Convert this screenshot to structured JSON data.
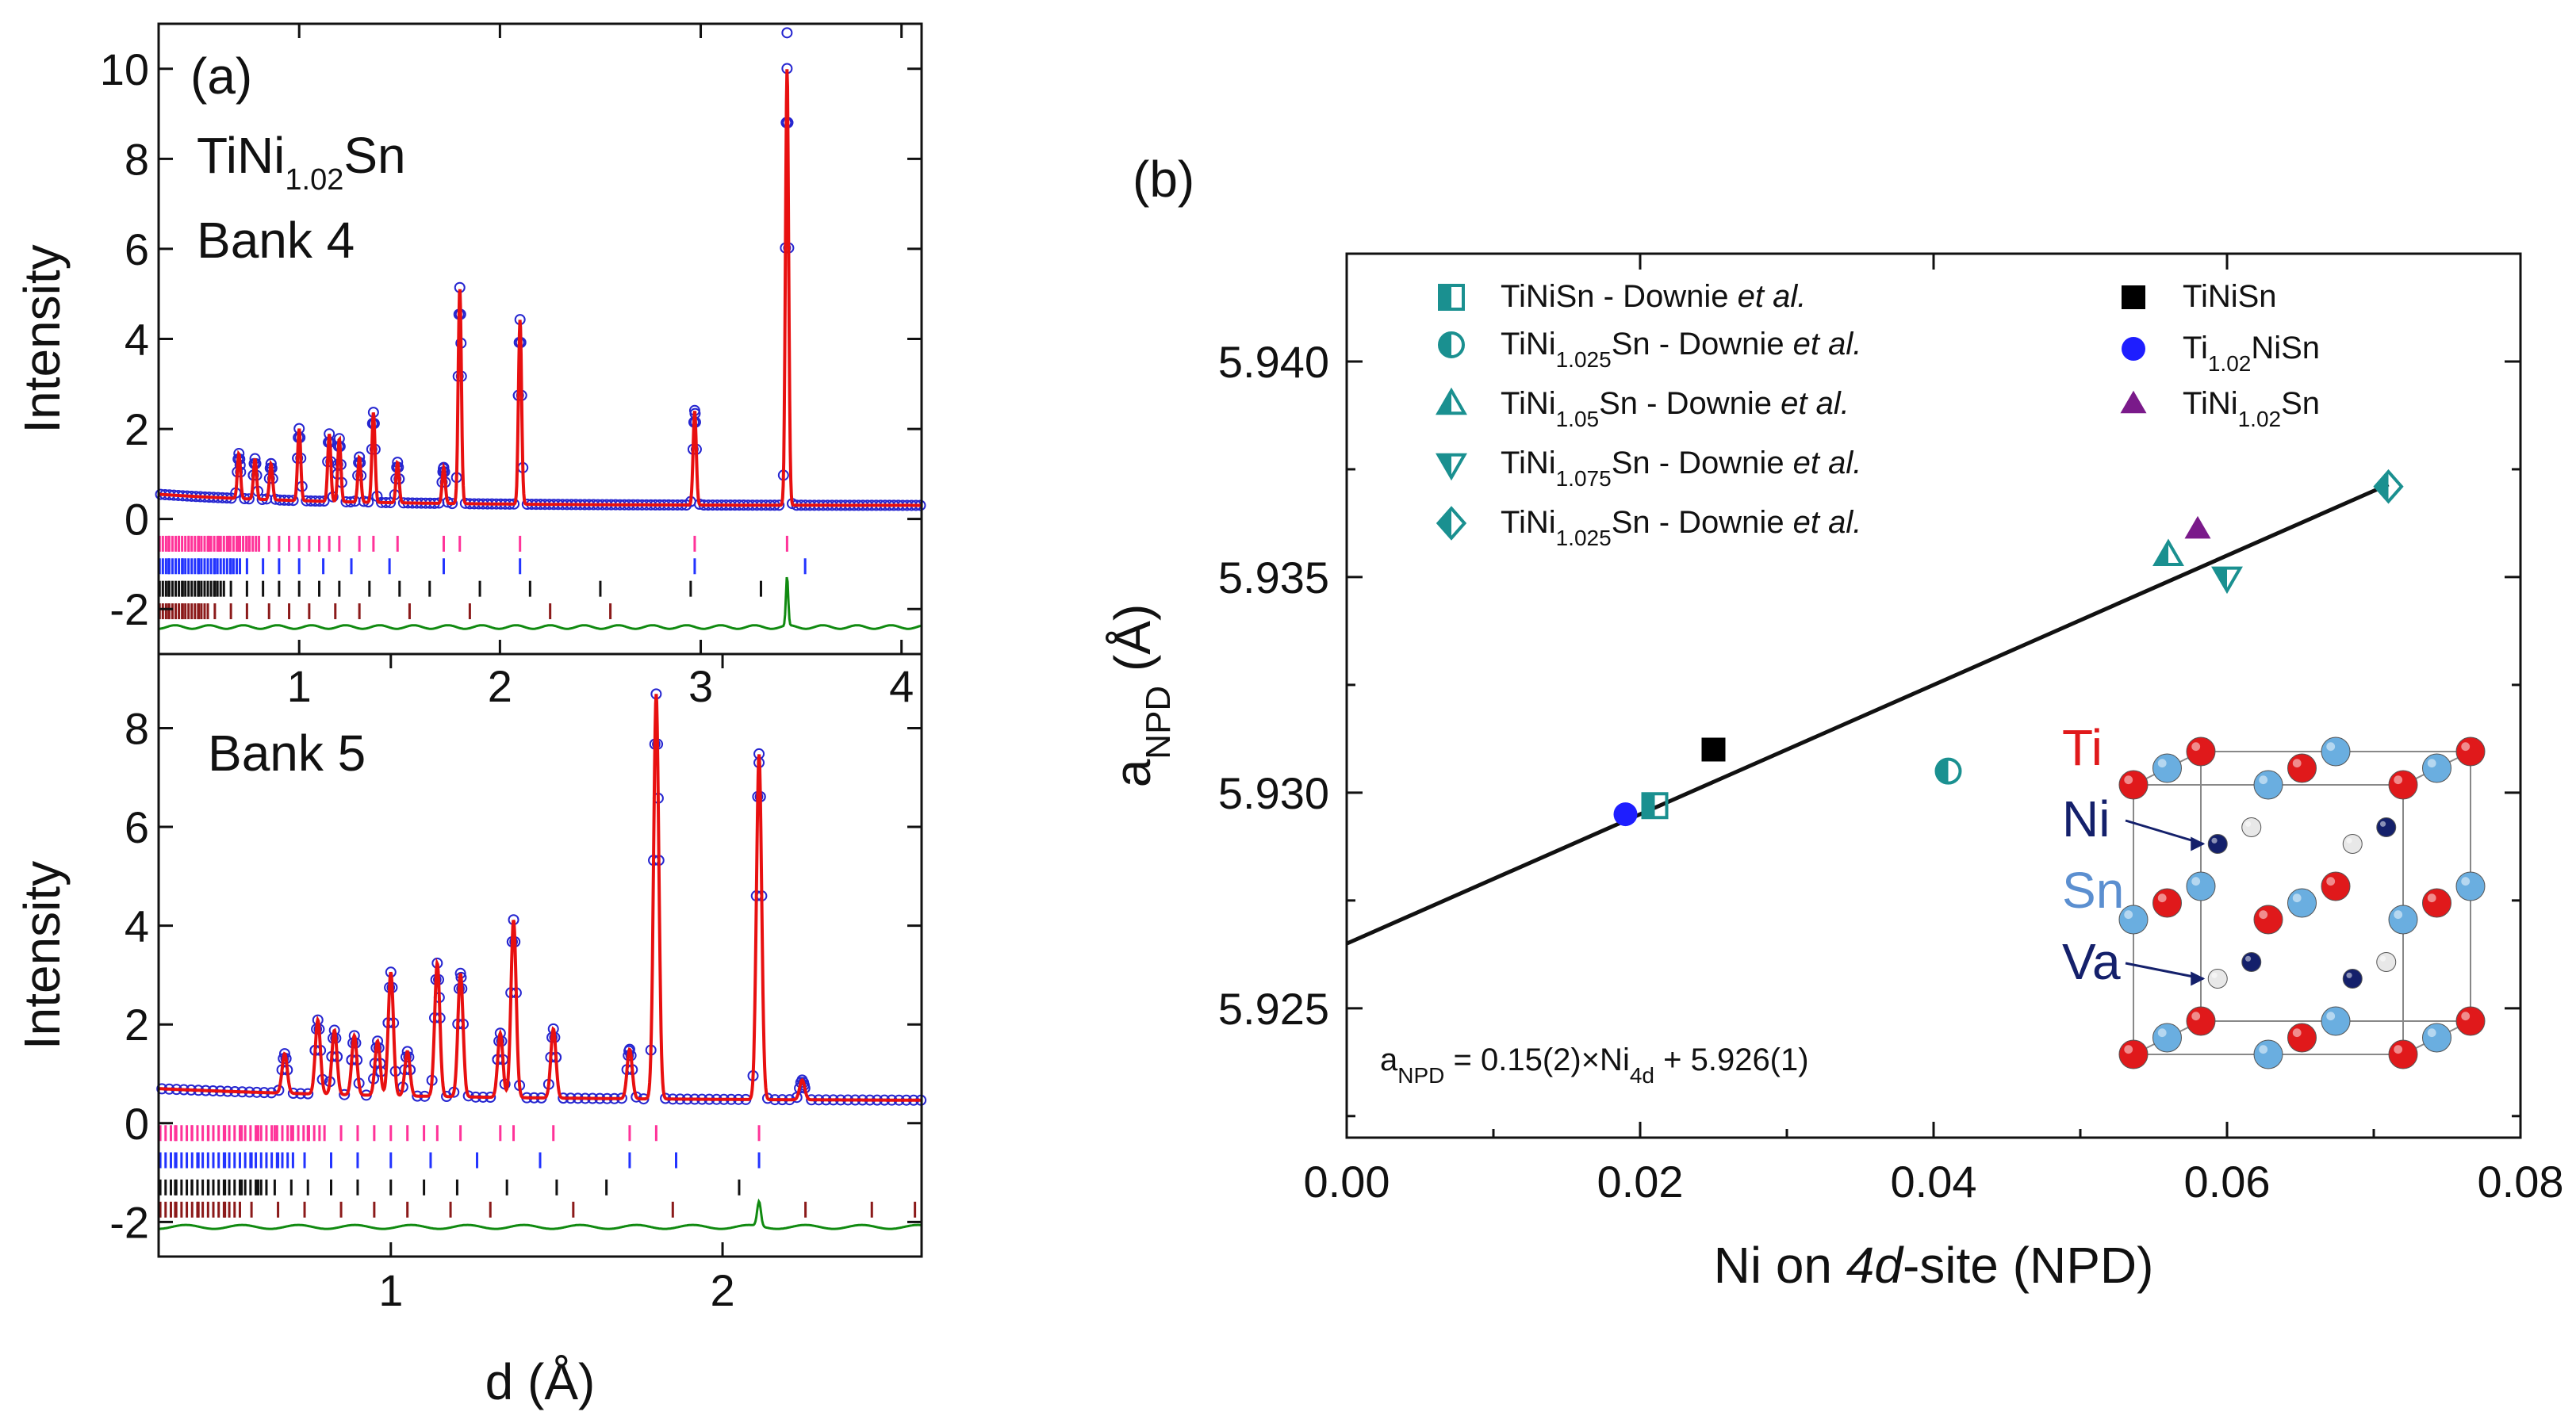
{
  "chart_data": [
    {
      "id": "a-bank4",
      "type": "line",
      "panel_label": "(a)",
      "compound": "TiNi",
      "compound_sub": "1.02",
      "compound_suffix": "Sn",
      "bank_label": "Bank 4",
      "ylabel": "Intensity",
      "xlim": [
        0.3,
        4.1
      ],
      "ylim": [
        -3.0,
        11.0
      ],
      "xticks": [
        "1",
        "2",
        "3",
        "4"
      ],
      "yticks": [
        "-2",
        "0",
        "2",
        "4",
        "6",
        "8",
        "10"
      ],
      "background": 0.3,
      "peaks": [
        {
          "d": 0.7,
          "h": 1.0
        },
        {
          "d": 0.78,
          "h": 0.9
        },
        {
          "d": 0.86,
          "h": 0.8
        },
        {
          "d": 1.0,
          "h": 1.6
        },
        {
          "d": 1.15,
          "h": 1.5
        },
        {
          "d": 1.2,
          "h": 1.4
        },
        {
          "d": 1.3,
          "h": 1.0
        },
        {
          "d": 1.37,
          "h": 2.0
        },
        {
          "d": 1.49,
          "h": 0.9
        },
        {
          "d": 1.72,
          "h": 0.8
        },
        {
          "d": 1.8,
          "h": 4.8
        },
        {
          "d": 2.1,
          "h": 4.1
        },
        {
          "d": 2.97,
          "h": 2.1
        },
        {
          "d": 3.43,
          "h": 9.7
        }
      ],
      "obs_max_point": {
        "d": 3.43,
        "y": 10.8
      },
      "ticks_rows": [
        {
          "color": "#ff3399",
          "y": -0.55,
          "d": [
            0.35,
            0.4,
            0.45,
            0.5,
            0.55,
            0.6,
            0.65,
            0.7,
            0.75,
            0.8,
            0.85,
            0.9,
            0.95,
            1.0,
            1.05,
            1.1,
            1.15,
            1.2,
            1.3,
            1.37,
            1.49,
            1.72,
            1.8,
            2.1,
            2.97,
            3.43
          ]
        },
        {
          "color": "#2233ff",
          "y": -1.05,
          "d": [
            0.35,
            0.42,
            0.5,
            0.58,
            0.66,
            0.74,
            0.82,
            0.9,
            1.0,
            1.12,
            1.26,
            1.45,
            1.72,
            2.1,
            2.97,
            3.52
          ]
        },
        {
          "color": "#111111",
          "y": -1.55,
          "d": [
            0.35,
            0.42,
            0.5,
            0.58,
            0.66,
            0.74,
            0.82,
            0.9,
            1.0,
            1.1,
            1.2,
            1.35,
            1.5,
            1.65,
            1.9,
            2.15,
            2.5,
            2.95,
            3.3
          ]
        },
        {
          "color": "#8b1a1a",
          "y": -2.05,
          "d": [
            0.35,
            0.42,
            0.5,
            0.58,
            0.66,
            0.74,
            0.85,
            0.95,
            1.05,
            1.18,
            1.3,
            1.55,
            1.85,
            2.25,
            2.55
          ]
        }
      ],
      "diff_offset": -2.4,
      "diff_spike": {
        "d": 3.43,
        "h": 1.1
      }
    },
    {
      "id": "a-bank5",
      "type": "line",
      "bank_label": "Bank 5",
      "ylabel": "Intensity",
      "xlabel": "d (Å)",
      "xlim": [
        0.3,
        2.6
      ],
      "ylim": [
        -2.7,
        9.5
      ],
      "xticks": [
        "1",
        "2"
      ],
      "yticks": [
        "-2",
        "0",
        "2",
        "4",
        "6",
        "8"
      ],
      "background": 0.45,
      "peaks": [
        {
          "d": 0.68,
          "h": 0.8
        },
        {
          "d": 0.78,
          "h": 1.5
        },
        {
          "d": 0.83,
          "h": 1.3
        },
        {
          "d": 0.89,
          "h": 1.2
        },
        {
          "d": 0.96,
          "h": 1.1
        },
        {
          "d": 1.0,
          "h": 2.5
        },
        {
          "d": 1.05,
          "h": 0.9
        },
        {
          "d": 1.14,
          "h": 2.7
        },
        {
          "d": 1.21,
          "h": 2.5
        },
        {
          "d": 1.33,
          "h": 1.3
        },
        {
          "d": 1.37,
          "h": 3.6
        },
        {
          "d": 1.49,
          "h": 1.4
        },
        {
          "d": 1.72,
          "h": 1.0
        },
        {
          "d": 1.8,
          "h": 8.2
        },
        {
          "d": 2.11,
          "h": 7.0
        },
        {
          "d": 2.24,
          "h": 0.4
        }
      ],
      "obs_max_point": {
        "d": 2.11,
        "y": 7.3
      },
      "ticks_rows": [
        {
          "color": "#ff3399",
          "y": -0.2,
          "d": [
            0.35,
            0.4,
            0.45,
            0.5,
            0.55,
            0.6,
            0.65,
            0.7,
            0.75,
            0.8,
            0.85,
            0.9,
            0.95,
            1.0,
            1.05,
            1.1,
            1.14,
            1.21,
            1.33,
            1.37,
            1.49,
            1.72,
            1.8,
            2.11
          ]
        },
        {
          "color": "#2233ff",
          "y": -0.75,
          "d": [
            0.35,
            0.42,
            0.5,
            0.58,
            0.66,
            0.74,
            0.82,
            0.9,
            1.0,
            1.12,
            1.26,
            1.45,
            1.72,
            1.86,
            2.11
          ]
        },
        {
          "color": "#111111",
          "y": -1.3,
          "d": [
            0.35,
            0.4,
            0.45,
            0.5,
            0.55,
            0.6,
            0.65,
            0.7,
            0.75,
            0.82,
            0.9,
            1.0,
            1.1,
            1.2,
            1.35,
            1.5,
            1.65,
            2.05
          ]
        },
        {
          "color": "#8b1a1a",
          "y": -1.75,
          "d": [
            0.35,
            0.42,
            0.5,
            0.58,
            0.66,
            0.74,
            0.85,
            0.95,
            1.05,
            1.18,
            1.3,
            1.55,
            1.85,
            2.25,
            2.45,
            2.58
          ]
        }
      ],
      "diff_offset": -2.1,
      "diff_spike": {
        "d": 2.11,
        "h": 0.5
      }
    },
    {
      "id": "b",
      "type": "scatter",
      "panel_label": "(b)",
      "xlabel_parts": [
        "Ni on ",
        "4d",
        "-site (NPD)"
      ],
      "ylabel_main": "a",
      "ylabel_sub": "NPD",
      "ylabel_unit": " (Å)",
      "xlim": [
        0.0,
        0.08
      ],
      "ylim": [
        5.922,
        5.9425
      ],
      "xticks": [
        "0.00",
        "0.02",
        "0.04",
        "0.06",
        "0.08"
      ],
      "yticks": [
        "5.925",
        "5.930",
        "5.935",
        "5.940"
      ],
      "points": [
        {
          "x": 0.021,
          "y": 5.9297,
          "marker": "square-half",
          "color": "#1a9090"
        },
        {
          "x": 0.041,
          "y": 5.9305,
          "marker": "circle-half",
          "color": "#1a9090"
        },
        {
          "x": 0.056,
          "y": 5.9355,
          "marker": "triangle-half",
          "color": "#1a9090"
        },
        {
          "x": 0.06,
          "y": 5.935,
          "marker": "triangle-down-half",
          "color": "#1a9090"
        },
        {
          "x": 0.071,
          "y": 5.9371,
          "marker": "diamond-half",
          "color": "#1a9090"
        },
        {
          "x": 0.025,
          "y": 5.931,
          "marker": "square",
          "color": "#000000"
        },
        {
          "x": 0.019,
          "y": 5.9295,
          "marker": "circle",
          "color": "#1e1eff"
        },
        {
          "x": 0.058,
          "y": 5.9361,
          "marker": "triangle",
          "color": "#7a1a8a"
        }
      ],
      "fit": {
        "slope": 0.15,
        "intercept": 5.9265
      },
      "fit_label": {
        "prefix": "a",
        "prefix_sub": "NPD",
        "mid": " = 0.15(2)×Ni",
        "mid_sub": "4d",
        "suffix": " + 5.926(1)"
      },
      "legend": [
        {
          "marker": "square-half",
          "color": "#1a9090",
          "text": "TiNiSn - Downie ",
          "sub": "",
          "tail": "",
          "italic": "et al."
        },
        {
          "marker": "circle-half",
          "color": "#1a9090",
          "text": "TiNi",
          "sub": "1.025",
          "tail": "Sn - Downie ",
          "italic": "et al."
        },
        {
          "marker": "triangle-half",
          "color": "#1a9090",
          "text": "TiNi",
          "sub": "1.05",
          "tail": "Sn - Downie ",
          "italic": "et al."
        },
        {
          "marker": "triangle-down-half",
          "color": "#1a9090",
          "text": "TiNi",
          "sub": "1.075",
          "tail": "Sn - Downie ",
          "italic": "et al."
        },
        {
          "marker": "diamond-half",
          "color": "#1a9090",
          "text": "TiNi",
          "sub": "1.025",
          "tail": "Sn - Downie ",
          "italic": "et al."
        },
        {
          "marker": "square",
          "color": "#000000",
          "text": "TiNiSn",
          "sub": "",
          "tail": "",
          "italic": ""
        },
        {
          "marker": "circle",
          "color": "#1e1eff",
          "text": "Ti",
          "sub": "1.02",
          "tail": "NiSn",
          "italic": ""
        },
        {
          "marker": "triangle",
          "color": "#7a1a8a",
          "text": "TiNi",
          "sub": "1.02",
          "tail": "Sn",
          "italic": ""
        }
      ],
      "inset_labels": [
        {
          "text": "Ti",
          "color": "#e0191b"
        },
        {
          "text": "Ni",
          "color": "#14206b"
        },
        {
          "text": "Sn",
          "color": "#5b8fd0"
        },
        {
          "text": "Va",
          "color": "#14206b"
        }
      ]
    }
  ]
}
